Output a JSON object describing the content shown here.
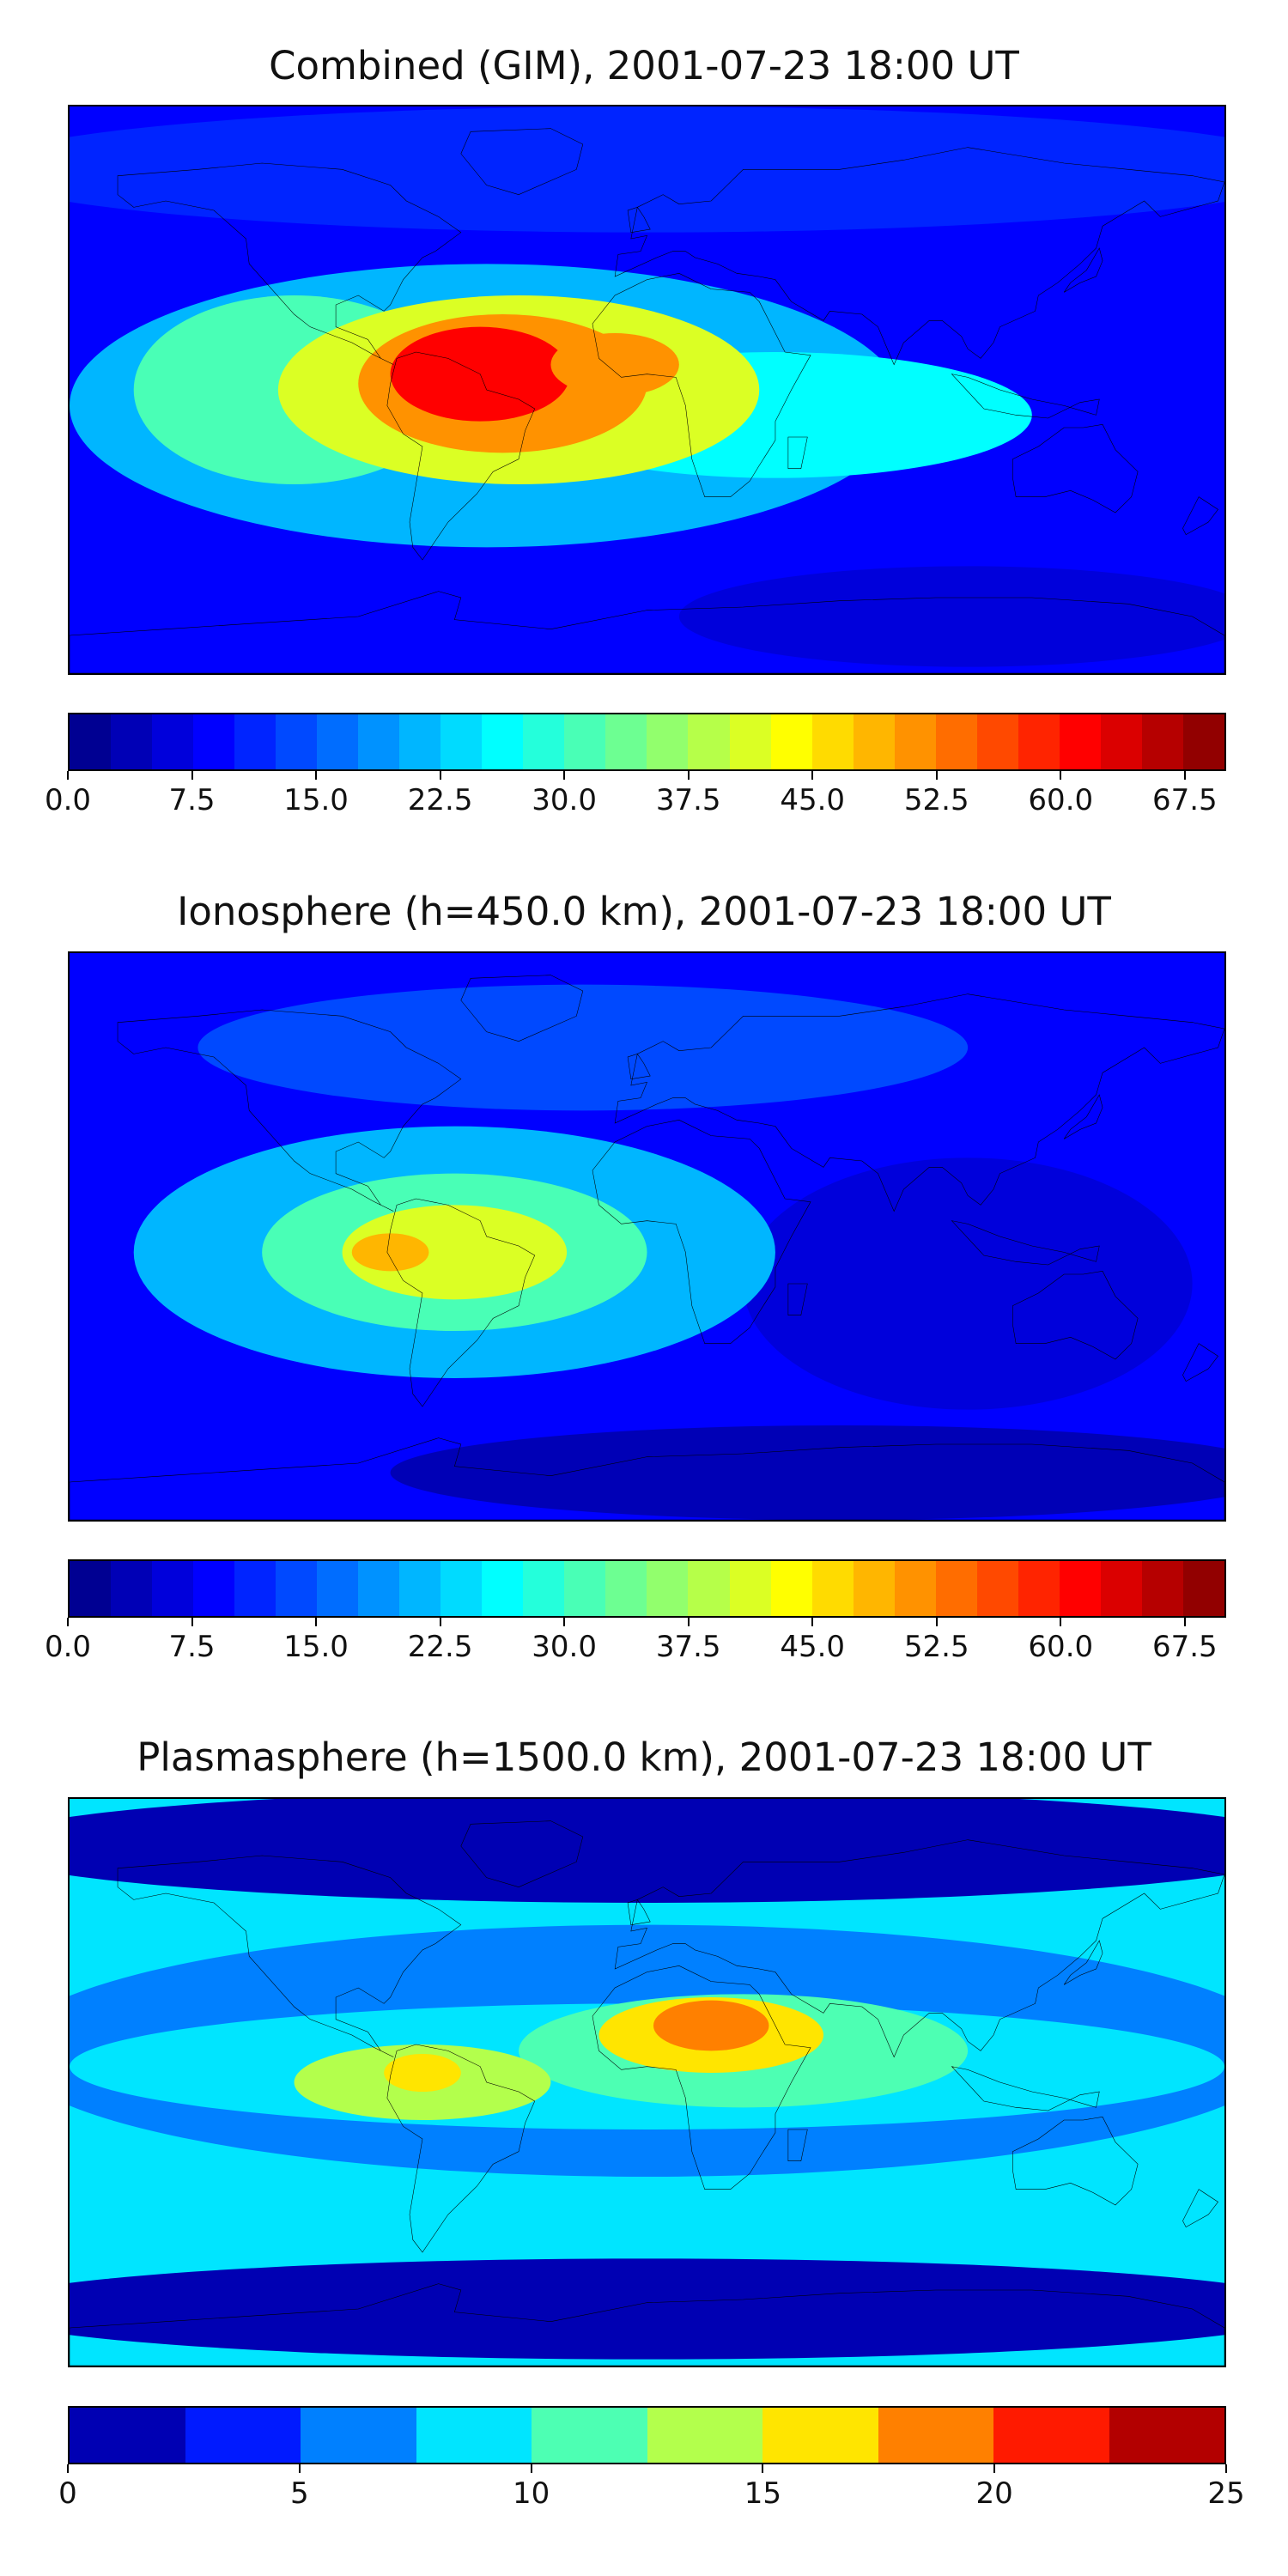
{
  "panels": [
    {
      "title": "Combined (GIM), 2001-07-23 18:00 UT",
      "vmin": 0.0,
      "vmax": 70.0,
      "levels": 28,
      "tick_values": [
        0.0,
        7.5,
        15.0,
        22.5,
        30.0,
        37.5,
        45.0,
        52.5,
        60.0,
        67.5
      ],
      "tick_labels": [
        "0.0",
        "7.5",
        "15.0",
        "22.5",
        "30.0",
        "37.5",
        "45.0",
        "52.5",
        "60.0",
        "67.5"
      ],
      "background_color": "#0a2cf0",
      "features": [
        {
          "desc": "high-latitude north band",
          "lon": 0,
          "lat": 70,
          "rx": 210,
          "ry": 20,
          "value": 12
        },
        {
          "desc": "low over Antarctica",
          "lon": 100,
          "lat": -72,
          "rx": 90,
          "ry": 16,
          "value": 5
        },
        {
          "desc": "low south pacific",
          "lon": -150,
          "lat": -45,
          "rx": 40,
          "ry": 25,
          "value": 8
        },
        {
          "desc": "broad equatorial band",
          "lon": -50,
          "lat": -5,
          "rx": 130,
          "ry": 45,
          "value": 22
        },
        {
          "desc": "band toward Asia",
          "lon": 40,
          "lat": -8,
          "rx": 80,
          "ry": 20,
          "value": 25
        },
        {
          "desc": "western equatorial",
          "lon": -110,
          "lat": 0,
          "rx": 50,
          "ry": 30,
          "value": 30
        },
        {
          "desc": "inner crest",
          "lon": -40,
          "lat": 0,
          "rx": 75,
          "ry": 30,
          "value": 40
        },
        {
          "desc": "anomaly core",
          "lon": -45,
          "lat": 2,
          "rx": 45,
          "ry": 22,
          "value": 52
        },
        {
          "desc": "peak over South America",
          "lon": -52,
          "lat": 5,
          "rx": 28,
          "ry": 15,
          "value": 62
        },
        {
          "desc": "secondary over west Africa",
          "lon": -10,
          "lat": 8,
          "rx": 20,
          "ry": 10,
          "value": 50
        }
      ]
    },
    {
      "title": "Ionosphere  (h=450.0 km), 2001-07-23 18:00 UT",
      "vmin": 0.0,
      "vmax": 70.0,
      "levels": 28,
      "tick_values": [
        0.0,
        7.5,
        15.0,
        22.5,
        30.0,
        37.5,
        45.0,
        52.5,
        60.0,
        67.5
      ],
      "tick_labels": [
        "0.0",
        "7.5",
        "15.0",
        "22.5",
        "30.0",
        "37.5",
        "45.0",
        "52.5",
        "60.0",
        "67.5"
      ],
      "background_color": "#0a2cf0",
      "features": [
        {
          "desc": "low over Antarctica",
          "lon": 60,
          "lat": -75,
          "rx": 140,
          "ry": 15,
          "value": 4
        },
        {
          "desc": "low over Indian Ocean",
          "lon": 100,
          "lat": -15,
          "rx": 70,
          "ry": 40,
          "value": 7
        },
        {
          "desc": "north band",
          "lon": -20,
          "lat": 60,
          "rx": 120,
          "ry": 20,
          "value": 13
        },
        {
          "desc": "equatorial band",
          "lon": -60,
          "lat": -5,
          "rx": 100,
          "ry": 40,
          "value": 20
        },
        {
          "desc": "inner crest",
          "lon": -60,
          "lat": -5,
          "rx": 60,
          "ry": 25,
          "value": 32
        },
        {
          "desc": "anomaly core",
          "lon": -60,
          "lat": -5,
          "rx": 35,
          "ry": 15,
          "value": 42
        },
        {
          "desc": "local maximum",
          "lon": -80,
          "lat": -5,
          "rx": 12,
          "ry": 6,
          "value": 48
        }
      ]
    },
    {
      "title": "Plasmasphere (h=1500.0 km), 2001-07-23 18:00 UT",
      "vmin": 0,
      "vmax": 25,
      "levels": 10,
      "tick_values": [
        0,
        5,
        10,
        15,
        20,
        25
      ],
      "tick_labels": [
        "0",
        "5",
        "10",
        "15",
        "20",
        "25"
      ],
      "background_color": "#0a2cf0",
      "features": [
        {
          "desc": "high-latitude north low",
          "lon": 0,
          "lat": 75,
          "rx": 210,
          "ry": 18,
          "value": 2
        },
        {
          "desc": "high-latitude south low",
          "lon": 0,
          "lat": -72,
          "rx": 210,
          "ry": 16,
          "value": 2
        },
        {
          "desc": "mid band",
          "lon": 0,
          "lat": 10,
          "rx": 200,
          "ry": 40,
          "value": 6
        },
        {
          "desc": "tropical band",
          "lon": 0,
          "lat": 5,
          "rx": 180,
          "ry": 20,
          "value": 9
        },
        {
          "desc": "core over Africa/Asia",
          "lon": 30,
          "lat": 10,
          "rx": 70,
          "ry": 18,
          "value": 12
        },
        {
          "desc": "crest over Africa",
          "lon": 20,
          "lat": 15,
          "rx": 35,
          "ry": 12,
          "value": 16
        },
        {
          "desc": "peak over Sahel/Arabia",
          "lon": 20,
          "lat": 18,
          "rx": 18,
          "ry": 8,
          "value": 19
        },
        {
          "desc": "South America crest",
          "lon": -70,
          "lat": 0,
          "rx": 40,
          "ry": 12,
          "value": 14
        },
        {
          "desc": "South America core",
          "lon": -70,
          "lat": 3,
          "rx": 12,
          "ry": 6,
          "value": 16
        }
      ]
    }
  ]
}
